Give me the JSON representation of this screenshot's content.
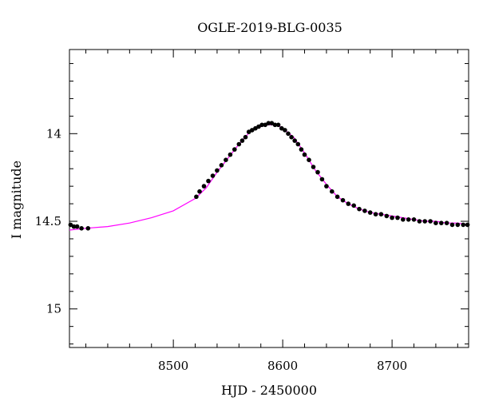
{
  "chart_data": {
    "type": "scatter",
    "title": "OGLE-2019-BLG-0035",
    "xlabel": "HJD - 2450000",
    "ylabel": "I magnitude",
    "xlim": [
      8405,
      8770
    ],
    "ylim": [
      15.22,
      13.52
    ],
    "y_inverted": true,
    "x_ticks": [
      8500,
      8600,
      8700
    ],
    "x_tick_labels": [
      "8500",
      "8600",
      "8700"
    ],
    "x_minor_step": 20,
    "y_ticks": [
      14,
      14.5,
      15
    ],
    "y_tick_labels": [
      "14",
      "14.5",
      "15"
    ],
    "y_minor_step": 0.1,
    "grid": false,
    "series": [
      {
        "kind": "points",
        "color": "#000000",
        "x": [
          8406,
          8409,
          8412,
          8416,
          8422,
          8521,
          8524,
          8528,
          8532,
          8536,
          8540,
          8544,
          8548,
          8552,
          8556,
          8560,
          8563,
          8566,
          8569,
          8572,
          8575,
          8578,
          8581,
          8584,
          8587,
          8590,
          8593,
          8596,
          8599,
          8602,
          8605,
          8608,
          8611,
          8614,
          8617,
          8620,
          8624,
          8628,
          8632,
          8636,
          8640,
          8645,
          8650,
          8655,
          8660,
          8665,
          8670,
          8675,
          8680,
          8685,
          8690,
          8695,
          8700,
          8705,
          8710,
          8715,
          8720,
          8725,
          8730,
          8735,
          8740,
          8745,
          8750,
          8755,
          8760,
          8765,
          8769
        ],
        "y": [
          14.52,
          14.53,
          14.53,
          14.54,
          14.54,
          14.36,
          14.33,
          14.3,
          14.27,
          14.24,
          14.21,
          14.18,
          14.15,
          14.12,
          14.09,
          14.06,
          14.04,
          14.02,
          13.99,
          13.98,
          13.97,
          13.96,
          13.95,
          13.95,
          13.94,
          13.94,
          13.95,
          13.95,
          13.97,
          13.98,
          14.0,
          14.02,
          14.04,
          14.06,
          14.09,
          14.12,
          14.15,
          14.19,
          14.22,
          14.26,
          14.3,
          14.33,
          14.36,
          14.38,
          14.4,
          14.41,
          14.43,
          14.44,
          14.45,
          14.46,
          14.46,
          14.47,
          14.48,
          14.48,
          14.49,
          14.49,
          14.49,
          14.5,
          14.5,
          14.5,
          14.51,
          14.51,
          14.51,
          14.52,
          14.52,
          14.52,
          14.52
        ]
      },
      {
        "kind": "model-line",
        "color": "#ff00ff",
        "x": [
          8405,
          8420,
          8440,
          8460,
          8480,
          8500,
          8520,
          8530,
          8540,
          8550,
          8560,
          8570,
          8575,
          8580,
          8585,
          8590,
          8595,
          8600,
          8610,
          8620,
          8630,
          8640,
          8650,
          8660,
          8670,
          8680,
          8690,
          8700,
          8710,
          8720,
          8730,
          8740,
          8750,
          8760,
          8770
        ],
        "y": [
          14.55,
          14.54,
          14.53,
          14.51,
          14.48,
          14.44,
          14.37,
          14.31,
          14.22,
          14.14,
          14.06,
          13.99,
          13.97,
          13.96,
          13.95,
          13.95,
          13.95,
          13.97,
          14.02,
          14.11,
          14.21,
          14.29,
          14.36,
          14.4,
          14.43,
          14.45,
          14.46,
          14.47,
          14.48,
          14.49,
          14.5,
          14.5,
          14.51,
          14.51,
          14.52
        ]
      }
    ]
  }
}
